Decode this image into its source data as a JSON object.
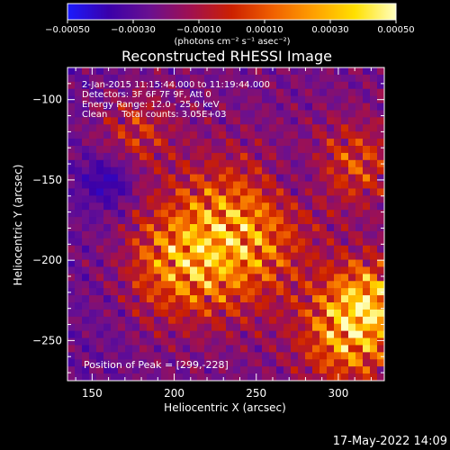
{
  "chart_data": {
    "type": "heatmap",
    "title": "Reconstructed RHESSI Image",
    "xlabel": "Heliocentric X (arcsec)",
    "ylabel": "Heliocentric Y (arcsec)",
    "xlim": [
      135,
      328
    ],
    "ylim": [
      -275,
      -80
    ],
    "x_ticks": [
      150,
      200,
      250,
      300
    ],
    "y_ticks": [
      -100,
      -150,
      -200,
      -250
    ],
    "x_tick_labels": [
      "150",
      "200",
      "250",
      "300"
    ],
    "y_tick_labels": [
      "−100",
      "−150",
      "−200",
      "−250"
    ],
    "grid": false,
    "colorbar": {
      "range": [
        -0.0005,
        0.0005
      ],
      "ticks": [
        -0.0005,
        -0.0003,
        -0.0001,
        0.0001,
        0.0003,
        0.0005
      ],
      "tick_labels": [
        "−0.00050",
        "−0.00030",
        "−0.00010",
        "0.00010",
        "0.00030",
        "0.00050"
      ],
      "label": "(photons cm⁻² s⁻¹ asec⁻²)",
      "stops": [
        "#1a1aff",
        "#3a00aa",
        "#6a1090",
        "#a01050",
        "#cc2000",
        "#f06000",
        "#ffa000",
        "#ffe000",
        "#ffffc0"
      ]
    },
    "annotations": {
      "time_range": "2-Jan-2015 11:15:44.000 to 11:19:44.000",
      "detectors": "Detectors: 3F 6F 7F 9F, Att 0",
      "energy": "Energy Range: 12.0 - 25.0 keV",
      "clean": "Clean     Total counts: 3.05E+03",
      "peak": "Position of Peak = [299,-228]"
    },
    "sources": [
      {
        "x": 235,
        "y": -185,
        "sigma": 30,
        "amp": 1.0
      },
      {
        "x": 200,
        "y": -205,
        "sigma": 22,
        "amp": 0.55
      },
      {
        "x": 318,
        "y": -225,
        "sigma": 18,
        "amp": 0.95
      },
      {
        "x": 305,
        "y": -250,
        "sigma": 20,
        "amp": 0.8
      },
      {
        "x": 175,
        "y": -120,
        "sigma": 16,
        "amp": 0.45
      },
      {
        "x": 310,
        "y": -140,
        "sigma": 18,
        "amp": 0.55
      },
      {
        "x": 160,
        "y": -150,
        "sigma": 12,
        "amp": -0.35
      },
      {
        "x": 275,
        "y": -150,
        "sigma": 14,
        "amp": -0.25
      }
    ]
  },
  "footer": {
    "date": "17-May-2022 14:09"
  }
}
